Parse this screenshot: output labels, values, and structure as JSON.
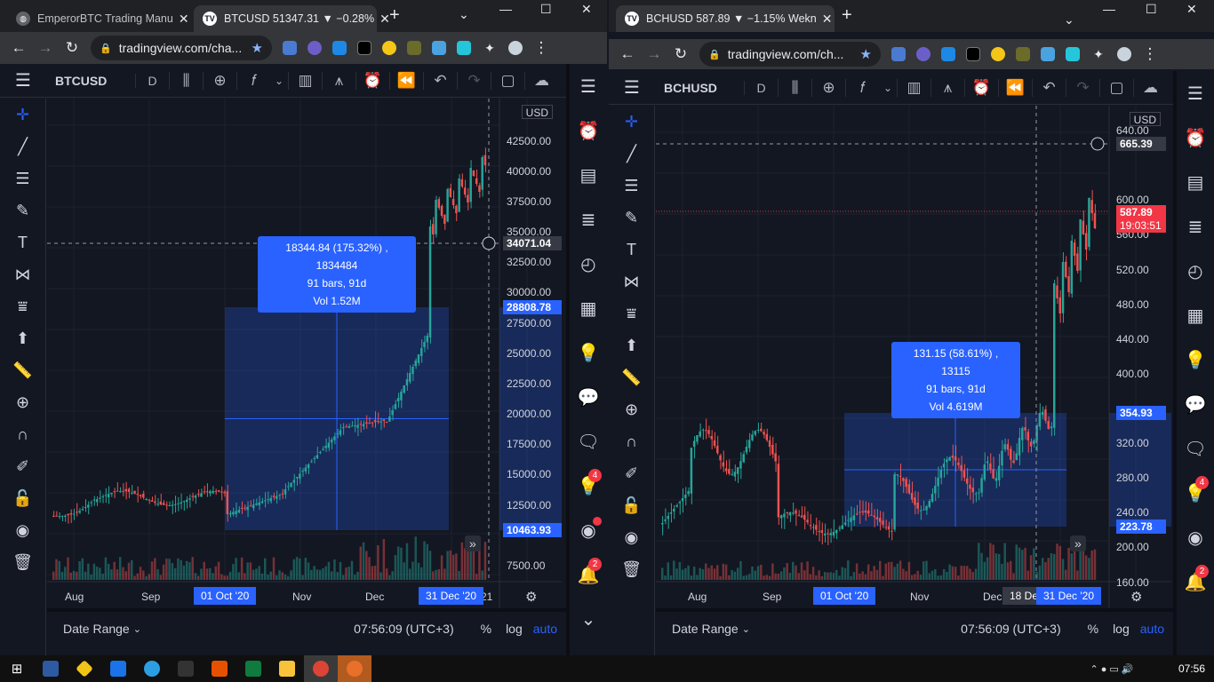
{
  "left": {
    "tabs": [
      {
        "title": "EmperorBTC Trading Manu"
      },
      {
        "title": "BTCUSD 51347.31 ▼ −0.28%"
      }
    ],
    "url": "tradingview.com/cha...",
    "symbol": "BTCUSD",
    "interval": "D",
    "currency": "USD",
    "prices": [
      "42500.00",
      "40000.00",
      "37500.00",
      "35000.00",
      "32500.00",
      "30000.00",
      "27500.00",
      "25000.00",
      "22500.00",
      "20000.00",
      "17500.00",
      "15000.00",
      "12500.00",
      "7500.00"
    ],
    "crosshair_price": "34071.04",
    "box_top": "28808.78",
    "box_bottom": "10463.93",
    "measure": {
      "line1": "18344.84 (175.32%) , 1834484",
      "line2": "91 bars, 91d",
      "line3": "Vol 1.52M"
    },
    "xaxis": [
      "Aug",
      "Sep",
      "Nov",
      "Dec",
      "21"
    ],
    "x_highlight": [
      "01 Oct '20",
      "31 Dec '20"
    ],
    "date_range": "Date Range",
    "time": "07:56:09 (UTC+3)",
    "pct": "%",
    "log": "log",
    "auto": "auto"
  },
  "right": {
    "tabs": [
      {
        "title": "BCHUSD 587.89 ▼ −1.15% Wekn"
      }
    ],
    "url": "tradingview.com/ch...",
    "symbol": "BCHUSD",
    "interval": "D",
    "currency": "USD",
    "prices": [
      "640.00",
      "600.00",
      "560.00",
      "520.00",
      "480.00",
      "440.00",
      "400.00",
      "320.00",
      "280.00",
      "240.00",
      "200.00",
      "160.00"
    ],
    "crosshair_price": "665.39",
    "last_price": "587.89",
    "countdown": "19:03:51",
    "box_top": "354.93",
    "box_bottom": "223.78",
    "measure": {
      "line1": "131.15 (58.61%) , 13115",
      "line2": "91 bars, 91d",
      "line3": "Vol 4.619M"
    },
    "xaxis": [
      "Aug",
      "Sep",
      "Nov",
      "Dec"
    ],
    "x_highlight": [
      "01 Oct '20",
      "31 Dec '20"
    ],
    "x_cross": "18 De",
    "date_range": "Date Range",
    "time": "07:56:09 (UTC+3)",
    "pct": "%",
    "log": "log",
    "auto": "auto"
  },
  "badges": {
    "alerts": "4",
    "notifications": "2"
  },
  "taskbar": {
    "clock": "07:56"
  },
  "colors": {
    "bg": "#131722",
    "accent": "#2962ff",
    "up": "#26a69a",
    "down": "#ef5350"
  }
}
